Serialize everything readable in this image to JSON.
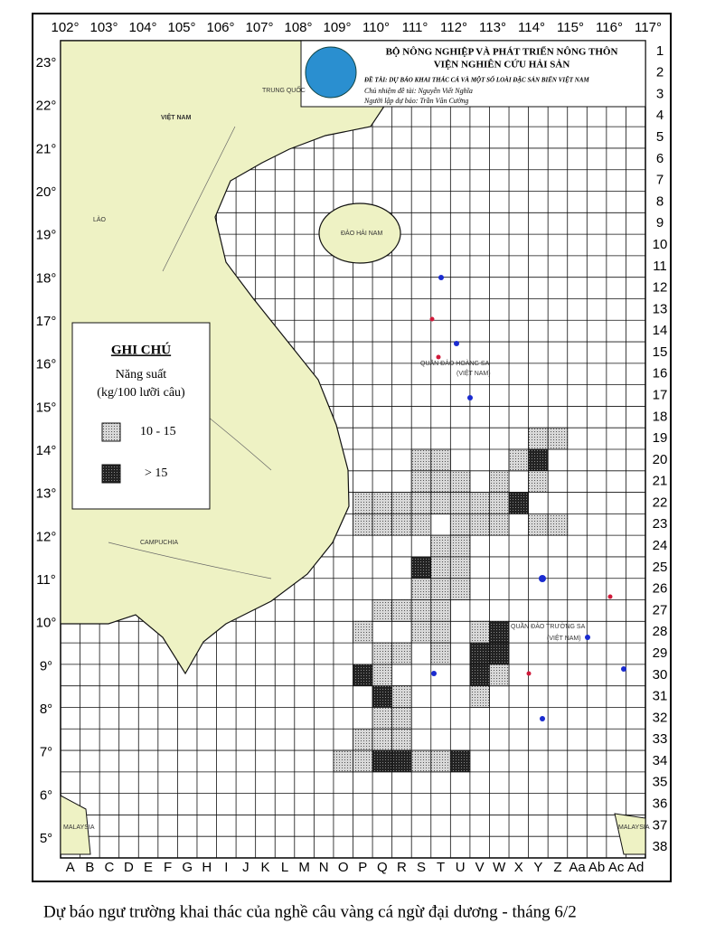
{
  "header": {
    "ministry": "BỘ NÔNG NGHIỆP VÀ PHÁT TRIỂN NÔNG THÔN",
    "institute": "VIỆN NGHIÊN CỨU HẢI SẢN",
    "project": "ĐỀ TÀI: DỰ BÁO KHAI THÁC CÁ VÀ MỘT SỐ LOÀI ĐẶC SẢN BIỂN VIỆT NAM",
    "leader": "Chủ nhiệm đề tài: Nguyễn Viết Nghĩa",
    "forecaster": "Người lập dự báo: Trần Văn Cường"
  },
  "legend": {
    "title": "GHI CHÚ",
    "subtitle": "Năng suất",
    "unit": "(kg/100 lưỡi câu)",
    "items": [
      "10 - 15",
      "> 15"
    ]
  },
  "longitudes": [
    "102°",
    "103°",
    "104°",
    "105°",
    "106°",
    "107°",
    "108°",
    "109°",
    "110°",
    "111°",
    "112°",
    "113°",
    "114°",
    "115°",
    "116°",
    "117°"
  ],
  "latitudes": [
    "23°",
    "22°",
    "21°",
    "20°",
    "19°",
    "18°",
    "17°",
    "16°",
    "15°",
    "14°",
    "13°",
    "12°",
    "11°",
    "10°",
    "9°",
    "8°",
    "7°",
    "6°",
    "5°"
  ],
  "columns": [
    "A",
    "B",
    "C",
    "D",
    "E",
    "F",
    "G",
    "H",
    "I",
    "J",
    "K",
    "L",
    "M",
    "N",
    "O",
    "P",
    "Q",
    "R",
    "S",
    "T",
    "U",
    "V",
    "W",
    "X",
    "Y",
    "Z",
    "Aa",
    "Ab",
    "Ac",
    "Ad"
  ],
  "rows": [
    "1",
    "2",
    "3",
    "4",
    "5",
    "6",
    "7",
    "8",
    "9",
    "10",
    "11",
    "12",
    "13",
    "14",
    "15",
    "16",
    "17",
    "18",
    "19",
    "20",
    "21",
    "22",
    "23",
    "24",
    "25",
    "26",
    "27",
    "28",
    "29",
    "30",
    "31",
    "32",
    "33",
    "34",
    "35",
    "36",
    "37",
    "38"
  ],
  "places": {
    "china": "TRUNG QUỐC",
    "vietnam": "VIỆT NAM",
    "laos": "LÀO",
    "cambodia": "CAMPUCHIA",
    "hainan": "ĐẢO HẢI NAM",
    "paracel": "QUẦN ĐẢO HOÀNG SA",
    "paracel_vn": "(VIỆT NAM)",
    "spratly": "QUẦN ĐẢO TRƯỜNG SA",
    "spratly_vn": "(VIỆT NAM)",
    "malaysia_w": "MALAYSIA",
    "malaysia_e": "MALAYSIA"
  },
  "caption": "Dự báo ngư trường khai thác của nghề câu vàng cá ngừ đại dương - tháng 6/2"
}
